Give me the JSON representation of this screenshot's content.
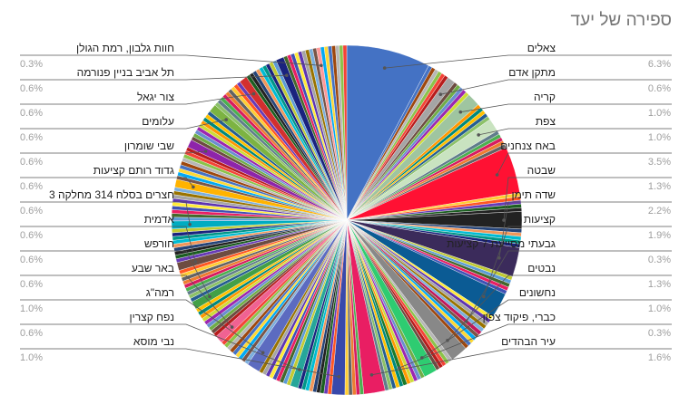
{
  "chart_data": {
    "type": "pie",
    "title": "ספירה של יעד",
    "labeled_slices": [
      {
        "name": "צאלים",
        "percent": "6.3%",
        "value": 6.3,
        "color": "#4472c4",
        "side": "right"
      },
      {
        "name": "מתקן אדם",
        "percent": "0.6%",
        "value": 0.6,
        "color": "#a5a5a5",
        "side": "right"
      },
      {
        "name": "קריה",
        "percent": "1.0%",
        "value": 1.0,
        "color": "#9fc5a0",
        "side": "right"
      },
      {
        "name": "צפת",
        "percent": "1.0%",
        "value": 1.0,
        "color": "#c9e3c0",
        "side": "right"
      },
      {
        "name": "באח צנחנים",
        "percent": "3.5%",
        "value": 3.5,
        "color": "#ff1133",
        "side": "right"
      },
      {
        "name": "שבטה",
        "percent": "1.3%",
        "value": 1.3,
        "color": "#222222",
        "side": "right"
      },
      {
        "name": "שדה תימן",
        "percent": "2.2%",
        "value": 2.2,
        "color": "#3b2b5b",
        "side": "right"
      },
      {
        "name": "קציעות",
        "percent": "1.9%",
        "value": 1.9,
        "color": "#0b5b94",
        "side": "right"
      },
      {
        "name": "גבעתי מסייעת 7 קציעות",
        "percent": "0.3%",
        "value": 0.3,
        "color": "#c2185b",
        "side": "right"
      },
      {
        "name": "נבטים",
        "percent": "1.3%",
        "value": 1.3,
        "color": "#888888",
        "side": "right"
      },
      {
        "name": "נחשונים",
        "percent": "1.0%",
        "value": 1.0,
        "color": "#2ecc71",
        "side": "right"
      },
      {
        "name": "כברי, פיקוד צפון",
        "percent": "0.3%",
        "value": 0.3,
        "color": "#1b7a2a",
        "side": "right"
      },
      {
        "name": "עיר הבהדים",
        "percent": "1.6%",
        "value": 1.6,
        "color": "#e91e63",
        "side": "right"
      },
      {
        "name": "חוות גלבון, רמת הגולן",
        "percent": "0.3%",
        "value": 0.3,
        "color": "#ff9999",
        "side": "left"
      },
      {
        "name": "תל אביב בניין פנורמה",
        "percent": "0.6%",
        "value": 0.6,
        "color": "#1a237e",
        "side": "left"
      },
      {
        "name": "צור יגאל",
        "percent": "0.6%",
        "value": 0.6,
        "color": "#d32f2f",
        "side": "left"
      },
      {
        "name": "עלומים",
        "percent": "0.6%",
        "value": 0.6,
        "color": "#7cb342",
        "side": "left"
      },
      {
        "name": "שבי שומרון",
        "percent": "0.6%",
        "value": 0.6,
        "color": "#8e24aa",
        "side": "left"
      },
      {
        "name": "גדוד רותם קציעות",
        "percent": "0.6%",
        "value": 0.6,
        "color": "#ffb300",
        "side": "left"
      },
      {
        "name": "חצרים בסלח 314 מחלקה 3",
        "percent": "0.6%",
        "value": 0.6,
        "color": "#00acc1",
        "side": "left"
      },
      {
        "name": "אדמית",
        "percent": "0.6%",
        "value": 0.6,
        "color": "#6d4c41",
        "side": "left"
      },
      {
        "name": "חורפש",
        "percent": "0.6%",
        "value": 0.6,
        "color": "#43a047",
        "side": "left"
      },
      {
        "name": "באר שבע",
        "percent": "0.6%",
        "value": 0.6,
        "color": "#f06292",
        "side": "left"
      },
      {
        "name": "רמה\"ג",
        "percent": "1.0%",
        "value": 1.0,
        "color": "#5c6bc0",
        "side": "left"
      },
      {
        "name": "נפח קצרין",
        "percent": "0.6%",
        "value": 0.6,
        "color": "#26a69a",
        "side": "left"
      },
      {
        "name": "נבי מוסא",
        "percent": "1.0%",
        "value": 1.0,
        "color": "#3949ab",
        "side": "left"
      }
    ],
    "unlabeled_slices_note": "",
    "legend": "none"
  }
}
